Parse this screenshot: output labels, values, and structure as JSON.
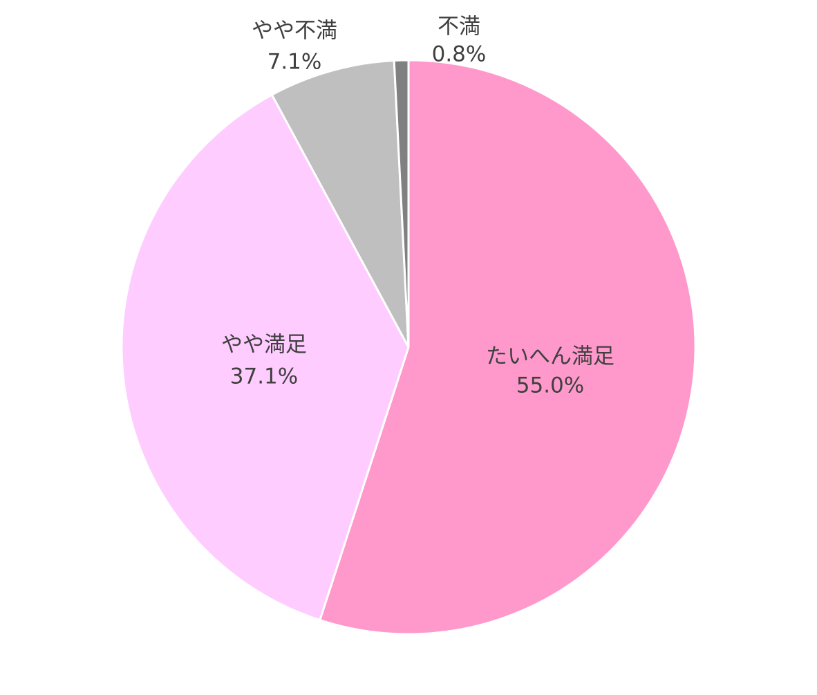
{
  "chart_data": {
    "type": "pie",
    "start": "top",
    "direction": "clockwise",
    "slices": [
      {
        "label": "たいへん満足",
        "value": 55.0,
        "value_label": "55.0%",
        "color": "#FF99CC"
      },
      {
        "label": "やや満足",
        "value": 37.1,
        "value_label": "37.1%",
        "color": "#FFCCFF"
      },
      {
        "label": "やや不満",
        "value": 7.1,
        "value_label": "7.1%",
        "color": "#BFBFBF"
      },
      {
        "label": "不満",
        "value": 0.8,
        "value_label": "0.8%",
        "color": "#808080"
      }
    ]
  }
}
